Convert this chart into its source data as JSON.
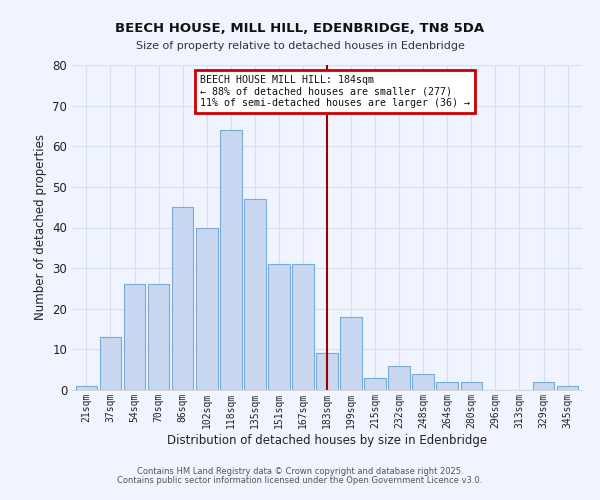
{
  "title": "BEECH HOUSE, MILL HILL, EDENBRIDGE, TN8 5DA",
  "subtitle": "Size of property relative to detached houses in Edenbridge",
  "xlabel": "Distribution of detached houses by size in Edenbridge",
  "ylabel": "Number of detached properties",
  "bar_labels": [
    "21sqm",
    "37sqm",
    "54sqm",
    "70sqm",
    "86sqm",
    "102sqm",
    "118sqm",
    "135sqm",
    "151sqm",
    "167sqm",
    "183sqm",
    "199sqm",
    "215sqm",
    "232sqm",
    "248sqm",
    "264sqm",
    "280sqm",
    "296sqm",
    "313sqm",
    "329sqm",
    "345sqm"
  ],
  "bar_heights": [
    1,
    13,
    26,
    26,
    45,
    40,
    64,
    47,
    31,
    31,
    9,
    18,
    3,
    6,
    4,
    2,
    2,
    0,
    0,
    2,
    1
  ],
  "bar_color": "#c8d8f0",
  "bar_edge_color": "#7aaad8",
  "ylim": [
    0,
    80
  ],
  "yticks": [
    0,
    10,
    20,
    30,
    40,
    50,
    60,
    70,
    80
  ],
  "vline_idx": 10,
  "vline_color": "#990000",
  "annotation_text": "BEECH HOUSE MILL HILL: 184sqm\n← 88% of detached houses are smaller (277)\n11% of semi-detached houses are larger (36) →",
  "annotation_box_color": "#ffffff",
  "annotation_box_edge": "#cc0000",
  "footer1": "Contains HM Land Registry data © Crown copyright and database right 2025.",
  "footer2": "Contains public sector information licensed under the Open Government Licence v3.0.",
  "background_color": "#f0f4ff",
  "grid_color": "#d8e0f0"
}
